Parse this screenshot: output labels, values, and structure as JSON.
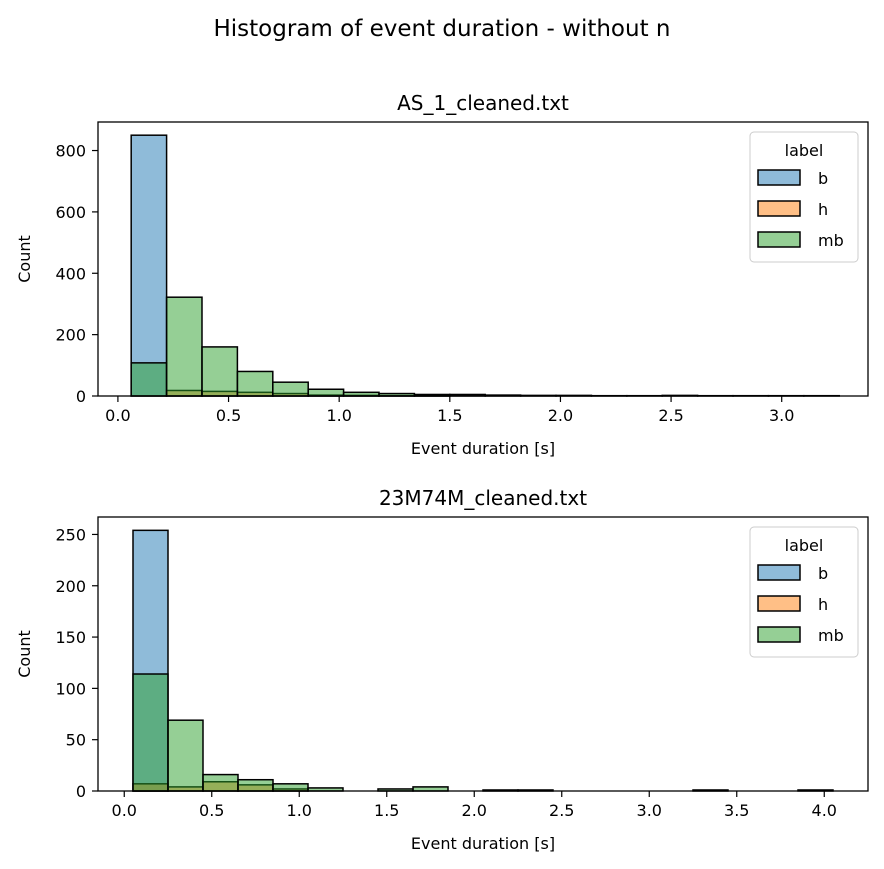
{
  "figure": {
    "suptitle": "Histogram of event duration - without n"
  },
  "chart_data": [
    {
      "type": "histogram",
      "title": "AS_1_cleaned.txt",
      "xlabel": "Event duration [s]",
      "ylabel": "Count",
      "xlim": [
        -0.09,
        3.39
      ],
      "ylim": [
        0,
        893
      ],
      "xticks": [
        0.0,
        0.5,
        1.0,
        1.5,
        2.0,
        2.5,
        3.0
      ],
      "xtick_labels": [
        "0.0",
        "0.5",
        "1.0",
        "1.5",
        "2.0",
        "2.5",
        "3.0"
      ],
      "yticks": [
        0,
        200,
        400,
        600,
        800
      ],
      "ytick_labels": [
        "0",
        "200",
        "400",
        "600",
        "800"
      ],
      "bin_edges": [
        0.06,
        0.22,
        0.38,
        0.54,
        0.7,
        0.86,
        1.02,
        1.18,
        1.34,
        1.5,
        1.66,
        1.82,
        1.98,
        2.14,
        2.3,
        2.46,
        2.62,
        2.78,
        2.94,
        3.1,
        3.26
      ],
      "legend": {
        "title": "label",
        "placement": "upper right"
      },
      "series": [
        {
          "name": "b",
          "color": "#1f77b4",
          "values": [
            850,
            0,
            0,
            0,
            0,
            0,
            0,
            0,
            0,
            0,
            0,
            0,
            0,
            0,
            0,
            0,
            0,
            0,
            0,
            0
          ]
        },
        {
          "name": "h",
          "color": "#ff7f0e",
          "values": [
            0,
            18,
            15,
            12,
            8,
            3,
            2,
            1,
            1,
            0,
            0,
            0,
            0,
            0,
            0,
            0,
            0,
            0,
            0,
            0
          ]
        },
        {
          "name": "mb",
          "color": "#2ca02c",
          "values": [
            108,
            322,
            160,
            80,
            45,
            22,
            12,
            8,
            5,
            5,
            3,
            2,
            2,
            1,
            1,
            2,
            1,
            1,
            1,
            1
          ]
        }
      ]
    },
    {
      "type": "histogram",
      "title": "23M74M_cleaned.txt",
      "xlabel": "Event duration [s]",
      "ylabel": "Count",
      "xlim": [
        -0.15,
        4.25
      ],
      "ylim": [
        0,
        267
      ],
      "xticks": [
        0.0,
        0.5,
        1.0,
        1.5,
        2.0,
        2.5,
        3.0,
        3.5,
        4.0
      ],
      "xtick_labels": [
        "0.0",
        "0.5",
        "1.0",
        "1.5",
        "2.0",
        "2.5",
        "3.0",
        "3.5",
        "4.0"
      ],
      "yticks": [
        0,
        50,
        100,
        150,
        200,
        250
      ],
      "ytick_labels": [
        "0",
        "50",
        "100",
        "150",
        "200",
        "250"
      ],
      "bin_edges": [
        0.05,
        0.25,
        0.45,
        0.65,
        0.85,
        1.05,
        1.25,
        1.45,
        1.65,
        1.85,
        2.05,
        2.25,
        2.45,
        2.65,
        2.85,
        3.05,
        3.25,
        3.45,
        3.65,
        3.85,
        4.05
      ],
      "legend": {
        "title": "label",
        "placement": "upper right"
      },
      "series": [
        {
          "name": "b",
          "color": "#1f77b4",
          "values": [
            254,
            0,
            0,
            0,
            0,
            0,
            0,
            0,
            0,
            0,
            0,
            0,
            0,
            0,
            0,
            0,
            0,
            0,
            0,
            0
          ]
        },
        {
          "name": "h",
          "color": "#ff7f0e",
          "values": [
            7,
            4,
            9,
            6,
            2,
            0,
            0,
            0,
            0,
            0,
            0,
            0,
            0,
            0,
            0,
            0,
            0,
            0,
            0,
            0
          ]
        },
        {
          "name": "mb",
          "color": "#2ca02c",
          "values": [
            114,
            69,
            16,
            11,
            7,
            3,
            0,
            2,
            4,
            0,
            1,
            1,
            0,
            0,
            0,
            0,
            1,
            0,
            0,
            1
          ]
        }
      ]
    }
  ]
}
